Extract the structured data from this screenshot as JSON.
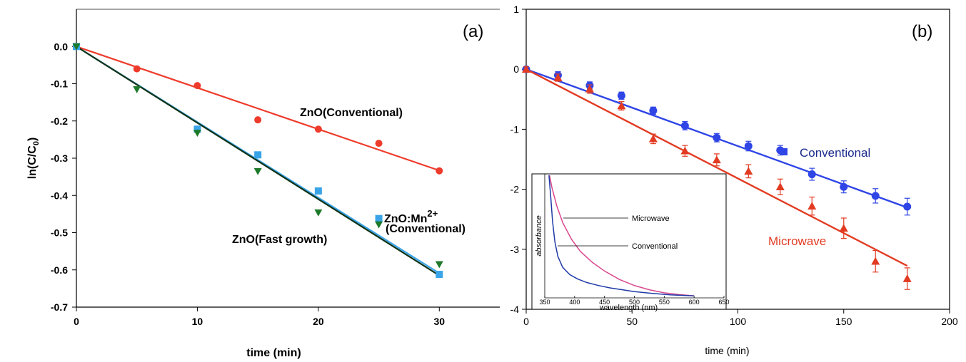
{
  "chart_data": [
    {
      "type": "scatter",
      "panel_label": "(a)",
      "xlabel": "time (min)",
      "ylabel_main": "ln(C/C",
      "ylabel_sub": "0",
      "ylabel_close": ")",
      "xlim": [
        0,
        35
      ],
      "ylim": [
        -0.7,
        0.1
      ],
      "x_ticks": [
        0,
        10,
        20,
        30
      ],
      "y_ticks": [
        0.0,
        -0.1,
        -0.2,
        -0.3,
        -0.4,
        -0.5,
        -0.6,
        -0.7
      ],
      "x_tick_labels": [
        "0",
        "10",
        "20",
        "30"
      ],
      "y_tick_labels": [
        "0.0",
        "-0.1",
        "-0.2",
        "-0.3",
        "-0.4",
        "-0.5",
        "-0.6",
        "-0.7"
      ],
      "series": [
        {
          "label": "ZnO(Conventional)",
          "marker": "circle",
          "color": "#ee3b2b",
          "x": [
            0,
            5,
            10,
            15,
            20,
            25,
            30
          ],
          "y": [
            0.0,
            -0.06,
            -0.105,
            -0.197,
            -0.222,
            -0.26,
            -0.334
          ],
          "fit_slope": -0.0111
        },
        {
          "label_main": "ZnO:Mn",
          "label_sup": "2+",
          "label_line2": "(Conventional)",
          "marker": "square",
          "color": "#3aa4e8",
          "x": [
            0,
            10,
            15,
            20,
            25,
            30
          ],
          "y": [
            0.0,
            -0.222,
            -0.291,
            -0.388,
            -0.462,
            -0.612
          ],
          "fit_slope": -0.0203
        },
        {
          "label": "ZnO(Fast growth)",
          "marker": "triangle-down",
          "color": "#1d7a2a",
          "fit_color": "#0f3318",
          "x": [
            0,
            5,
            10,
            15,
            20,
            25,
            30
          ],
          "y": [
            0.0,
            -0.115,
            -0.232,
            -0.335,
            -0.446,
            -0.478,
            -0.585
          ],
          "fit_slope": -0.0205
        }
      ]
    },
    {
      "type": "scatter",
      "panel_label": "(b)",
      "xlabel": "time (min)",
      "xlim": [
        0,
        200
      ],
      "ylim": [
        -4,
        1
      ],
      "x_ticks": [
        0,
        50,
        100,
        150,
        200
      ],
      "y_ticks": [
        1,
        0,
        -1,
        -2,
        -3,
        -4
      ],
      "x_tick_labels": [
        "0",
        "50",
        "100",
        "150",
        "200"
      ],
      "y_tick_labels": [
        "1",
        "0",
        "-1",
        "-2",
        "-3",
        "-4"
      ],
      "series": [
        {
          "label": "Conventional",
          "marker": "circle",
          "color": "#2f45e6",
          "label_color": "#1b2a8c",
          "x": [
            0,
            15,
            30,
            45,
            60,
            75,
            90,
            105,
            120,
            135,
            150,
            165,
            180
          ],
          "y": [
            0.0,
            -0.1,
            -0.27,
            -0.44,
            -0.69,
            -0.94,
            -1.14,
            -1.28,
            -1.35,
            -1.75,
            -1.96,
            -2.11,
            -2.29
          ],
          "err": [
            0.04,
            0.06,
            0.06,
            0.06,
            0.06,
            0.07,
            0.07,
            0.08,
            0.08,
            0.1,
            0.1,
            0.12,
            0.14
          ],
          "fit_slope": -0.0128
        },
        {
          "label": "Microwave",
          "marker": "triangle-up",
          "color": "#e23b22",
          "label_color": "#e23b22",
          "x": [
            0,
            15,
            30,
            45,
            60,
            75,
            90,
            105,
            120,
            135,
            150,
            165,
            180
          ],
          "y": [
            0.0,
            -0.14,
            -0.33,
            -0.61,
            -1.16,
            -1.36,
            -1.51,
            -1.7,
            -1.96,
            -2.28,
            -2.65,
            -3.2,
            -3.49
          ],
          "err": [
            0.04,
            0.06,
            0.07,
            0.07,
            0.08,
            0.09,
            0.1,
            0.11,
            0.13,
            0.15,
            0.17,
            0.18,
            0.18
          ],
          "fit_slope": -0.0182
        }
      ],
      "inset": {
        "type": "line",
        "xlabel": "wavelength (nm)",
        "ylabel": "absorbance",
        "xlim": [
          350,
          650
        ],
        "x_ticks": [
          350,
          400,
          450,
          500,
          550,
          600,
          650
        ],
        "x_tick_labels": [
          "350",
          "400",
          "450",
          "500",
          "550",
          "600",
          "650"
        ],
        "labels": [
          "Microwave",
          "Conventional"
        ],
        "curves": [
          {
            "name": "Microwave",
            "color": "#d9488f",
            "x": [
              358,
              362,
              370,
              380,
              395,
              410,
              430,
              450,
              475,
              500,
              525,
              550,
              575,
              600
            ],
            "y": [
              1.0,
              0.9,
              0.75,
              0.61,
              0.47,
              0.37,
              0.28,
              0.21,
              0.14,
              0.09,
              0.055,
              0.03,
              0.015,
              0.005
            ]
          },
          {
            "name": "Conventional",
            "color": "#1f3aa6",
            "x": [
              357,
              360,
              363,
              367,
              372,
              380,
              392,
              405,
              420,
              440,
              460,
              480,
              500,
              530,
              560,
              600
            ],
            "y": [
              1.0,
              0.82,
              0.62,
              0.45,
              0.33,
              0.24,
              0.18,
              0.145,
              0.115,
              0.09,
              0.07,
              0.055,
              0.04,
              0.025,
              0.013,
              0.004
            ]
          }
        ]
      }
    }
  ]
}
